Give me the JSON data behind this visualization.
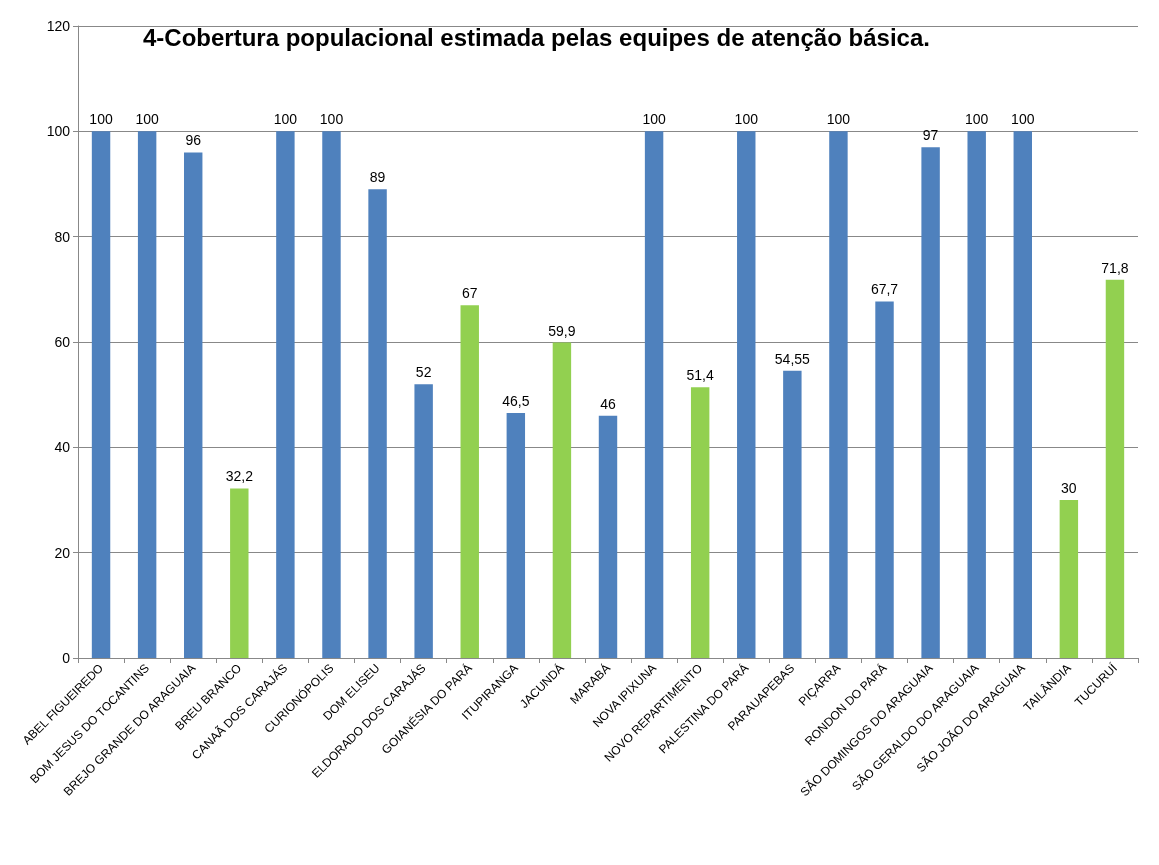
{
  "chart_data": {
    "type": "bar",
    "title": "4-Cobertura populacional estimada pelas equipes de atenção básica.",
    "categories": [
      "ABEL FIGUEIREDO",
      "BOM JESUS DO TOCANTINS",
      "BREJO GRANDE DO ARAGUAIA",
      "BREU BRANCO",
      "CANAÃ DOS CARAJÁS",
      "CURIONÓPOLIS",
      "DOM ELISEU",
      "ELDORADO DOS CARAJÁS",
      "GOIANÉSIA DO PARÁ",
      "ITUPIRANGA",
      "JACUNDÁ",
      "MARABÁ",
      "NOVA IPIXUNA",
      "NOVO REPARTIMENTO",
      "PALESTINA DO PARÁ",
      "PARAUAPEBAS",
      "PIÇARRA",
      "RONDON DO PARÁ",
      "SÃO DOMINGOS DO ARAGUAIA",
      "SÃO GERALDO DO ARAGUAIA",
      "SÃO JOÃO DO ARAGUAIA",
      "TAILÂNDIA",
      "TUCURUÍ"
    ],
    "values": [
      100,
      100,
      96,
      32.2,
      100,
      100,
      89,
      52,
      67,
      46.5,
      59.9,
      46,
      100,
      51.4,
      100,
      54.55,
      100,
      67.7,
      97,
      100,
      100,
      30,
      71.8
    ],
    "value_labels": [
      "100",
      "100",
      "96",
      "32,2",
      "100",
      "100",
      "89",
      "52",
      "67",
      "46,5",
      "59,9",
      "46",
      "100",
      "51,4",
      "100",
      "54,55",
      "100",
      "67,7",
      "97",
      "100",
      "100",
      "30",
      "71,8"
    ],
    "colors": [
      "#4f81bd",
      "#4f81bd",
      "#4f81bd",
      "#92d050",
      "#4f81bd",
      "#4f81bd",
      "#4f81bd",
      "#4f81bd",
      "#92d050",
      "#4f81bd",
      "#92d050",
      "#4f81bd",
      "#4f81bd",
      "#92d050",
      "#4f81bd",
      "#4f81bd",
      "#4f81bd",
      "#4f81bd",
      "#4f81bd",
      "#4f81bd",
      "#4f81bd",
      "#92d050",
      "#92d050"
    ],
    "ylim": [
      0,
      120
    ],
    "yticks": [
      0,
      20,
      40,
      60,
      80,
      100,
      120
    ],
    "grid": "y"
  }
}
